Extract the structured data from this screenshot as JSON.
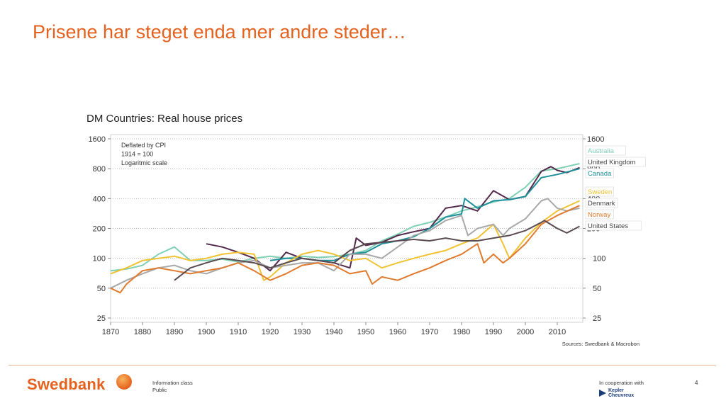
{
  "slide": {
    "title": "Prisene har steget enda mer andre steder…",
    "footer_logo": "Swedbank",
    "info_class_label": "Information class",
    "info_class_value": "Public",
    "cooperation": "In cooperation with",
    "partner_line1": "Kepler",
    "partner_line2": "Cheuvreux",
    "page_number": "4"
  },
  "chart_data": {
    "type": "line",
    "title": "DM Countries: Real house prices",
    "annotation": [
      "Deflated by CPI",
      "1914 = 100",
      "Logaritmic scale"
    ],
    "source": "Sources: Swedbank & Macrobon",
    "y_scale": "log",
    "ylim": [
      25,
      1600
    ],
    "xlim": [
      1870,
      2018
    ],
    "y_ticks": [
      1600,
      800,
      400,
      200,
      100,
      50,
      25
    ],
    "x_ticks": [
      1870,
      1880,
      1890,
      1900,
      1910,
      1920,
      1930,
      1940,
      1950,
      1960,
      1970,
      1980,
      1990,
      2000,
      2010
    ],
    "grid": "horizontal dotted",
    "legend_position": "right",
    "series": [
      {
        "name": "Australia",
        "color": "#7fd0b2",
        "x": [
          1870,
          1875,
          1880,
          1885,
          1890,
          1895,
          1900,
          1905,
          1910,
          1915,
          1920,
          1925,
          1930,
          1935,
          1940,
          1945,
          1950,
          1955,
          1960,
          1965,
          1970,
          1975,
          1980,
          1985,
          1990,
          1995,
          2000,
          2005,
          2010,
          2017
        ],
        "y": [
          75,
          78,
          85,
          110,
          130,
          95,
          95,
          98,
          92,
          100,
          105,
          100,
          105,
          102,
          104,
          110,
          120,
          150,
          175,
          210,
          230,
          260,
          300,
          330,
          370,
          400,
          520,
          760,
          800,
          900
        ]
      },
      {
        "name": "United Kingdom",
        "color": "#53294c",
        "x": [
          1900,
          1905,
          1910,
          1915,
          1920,
          1925,
          1930,
          1935,
          1940,
          1945,
          1947,
          1950,
          1955,
          1960,
          1965,
          1970,
          1975,
          1980,
          1985,
          1990,
          1995,
          2000,
          2005,
          2008,
          2010,
          2013,
          2017
        ],
        "y": [
          140,
          130,
          115,
          100,
          75,
          115,
          100,
          95,
          90,
          80,
          160,
          135,
          145,
          170,
          185,
          200,
          320,
          340,
          300,
          480,
          390,
          420,
          750,
          840,
          770,
          730,
          820
        ]
      },
      {
        "name": "Canada",
        "color": "#1f8f9a",
        "x": [
          1920,
          1925,
          1930,
          1935,
          1940,
          1945,
          1950,
          1955,
          1960,
          1965,
          1970,
          1975,
          1980,
          1981,
          1985,
          1990,
          1995,
          2000,
          2005,
          2010,
          2017
        ],
        "y": [
          95,
          100,
          100,
          95,
          95,
          110,
          115,
          140,
          150,
          165,
          200,
          260,
          280,
          400,
          320,
          380,
          390,
          420,
          650,
          700,
          800
        ]
      },
      {
        "name": "Sweden",
        "color": "#f1c232",
        "x": [
          1870,
          1875,
          1880,
          1885,
          1890,
          1895,
          1900,
          1905,
          1910,
          1915,
          1918,
          1920,
          1925,
          1930,
          1935,
          1940,
          1945,
          1950,
          1955,
          1960,
          1965,
          1970,
          1975,
          1980,
          1985,
          1990,
          1993,
          1995,
          2000,
          2005,
          2010,
          2017
        ],
        "y": [
          70,
          80,
          95,
          100,
          105,
          95,
          100,
          110,
          115,
          110,
          60,
          65,
          90,
          110,
          120,
          110,
          95,
          100,
          80,
          90,
          100,
          110,
          120,
          140,
          160,
          220,
          140,
          100,
          160,
          230,
          300,
          380
        ]
      },
      {
        "name": "Denmark",
        "color": "#a8a8a8",
        "x": [
          1870,
          1875,
          1880,
          1885,
          1890,
          1895,
          1900,
          1905,
          1910,
          1915,
          1920,
          1925,
          1930,
          1935,
          1940,
          1945,
          1950,
          1955,
          1960,
          1965,
          1970,
          1975,
          1980,
          1982,
          1985,
          1990,
          1993,
          1995,
          2000,
          2005,
          2007,
          2010,
          2013,
          2017
        ],
        "y": [
          50,
          60,
          70,
          80,
          85,
          75,
          70,
          80,
          90,
          95,
          80,
          85,
          90,
          90,
          75,
          110,
          110,
          100,
          130,
          170,
          190,
          240,
          270,
          170,
          200,
          220,
          170,
          200,
          250,
          380,
          400,
          320,
          300,
          320
        ]
      },
      {
        "name": "Norway",
        "color": "#e07a2e",
        "x": [
          1870,
          1873,
          1875,
          1880,
          1885,
          1890,
          1895,
          1900,
          1905,
          1910,
          1915,
          1920,
          1925,
          1930,
          1935,
          1940,
          1945,
          1950,
          1952,
          1955,
          1960,
          1965,
          1970,
          1975,
          1980,
          1985,
          1987,
          1990,
          1993,
          1995,
          2000,
          2005,
          2010,
          2017
        ],
        "y": [
          50,
          45,
          55,
          75,
          80,
          75,
          70,
          75,
          80,
          90,
          75,
          60,
          70,
          85,
          90,
          85,
          70,
          75,
          55,
          65,
          60,
          70,
          80,
          95,
          110,
          140,
          90,
          110,
          90,
          100,
          140,
          220,
          270,
          340
        ]
      },
      {
        "name": "United States",
        "color": "#5a4a52",
        "x": [
          1890,
          1895,
          1900,
          1905,
          1910,
          1915,
          1920,
          1925,
          1930,
          1935,
          1940,
          1945,
          1950,
          1955,
          1960,
          1965,
          1970,
          1975,
          1980,
          1985,
          1990,
          1995,
          2000,
          2005,
          2006,
          2010,
          2013,
          2017
        ],
        "y": [
          60,
          80,
          90,
          100,
          95,
          90,
          80,
          90,
          100,
          95,
          90,
          120,
          140,
          145,
          150,
          155,
          150,
          160,
          150,
          150,
          160,
          170,
          190,
          230,
          240,
          200,
          180,
          210
        ]
      }
    ]
  }
}
